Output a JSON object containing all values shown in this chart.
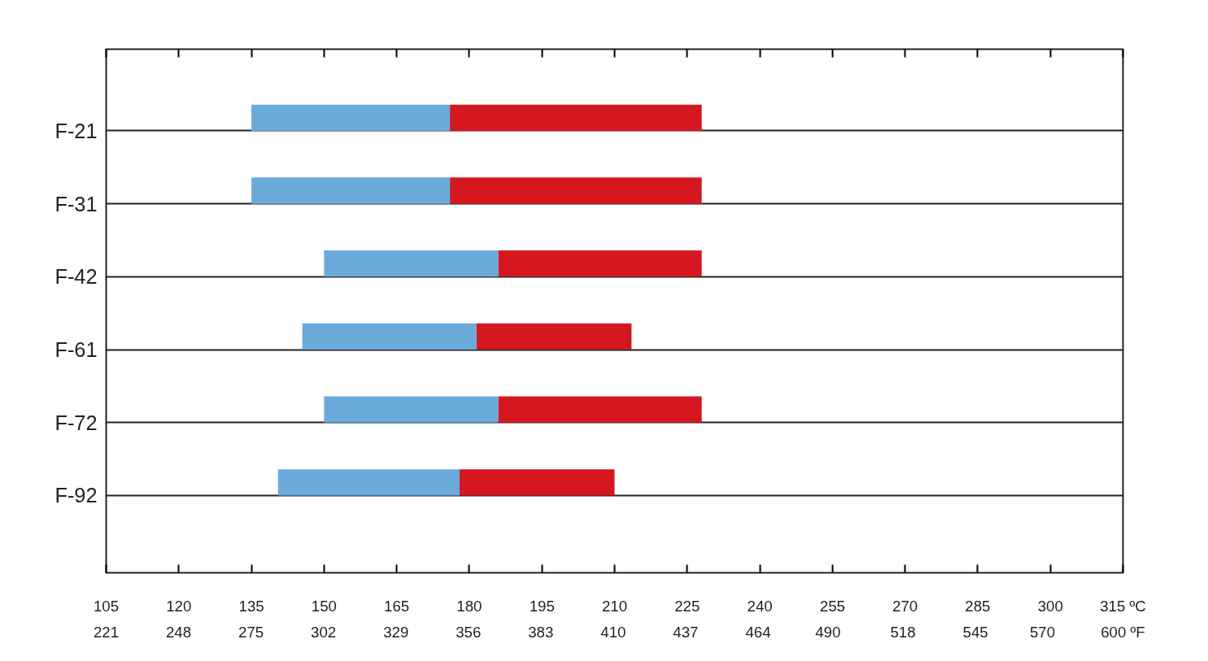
{
  "chart_data": {
    "type": "bar",
    "orientation": "horizontal",
    "categories": [
      "F-21",
      "F-31",
      "F-42",
      "F-61",
      "F-72",
      "F-92"
    ],
    "series": [
      {
        "color": "#6aaadb",
        "base": [
          135,
          135,
          150,
          145.5,
          150,
          140.5
        ],
        "values": [
          41,
          41,
          36,
          36,
          36,
          37.5
        ]
      },
      {
        "color": "#d51820",
        "base": [
          176,
          176,
          186,
          181.5,
          186,
          178
        ],
        "values": [
          52,
          52,
          42,
          32,
          42,
          32
        ]
      }
    ],
    "xlim": [
      105,
      315
    ],
    "xticks": [
      105,
      120,
      135,
      150,
      165,
      180,
      195,
      210,
      225,
      240,
      255,
      270,
      285,
      300,
      {
        "value": 315,
        "label": "315 ºC"
      }
    ],
    "x2lim": [
      221,
      600
    ],
    "x2ticks": [
      221,
      248,
      275,
      302,
      329,
      356,
      383,
      410,
      437,
      464,
      490,
      518,
      545,
      570,
      {
        "value": 600,
        "label": "600 ºF"
      }
    ],
    "grid": "y"
  }
}
